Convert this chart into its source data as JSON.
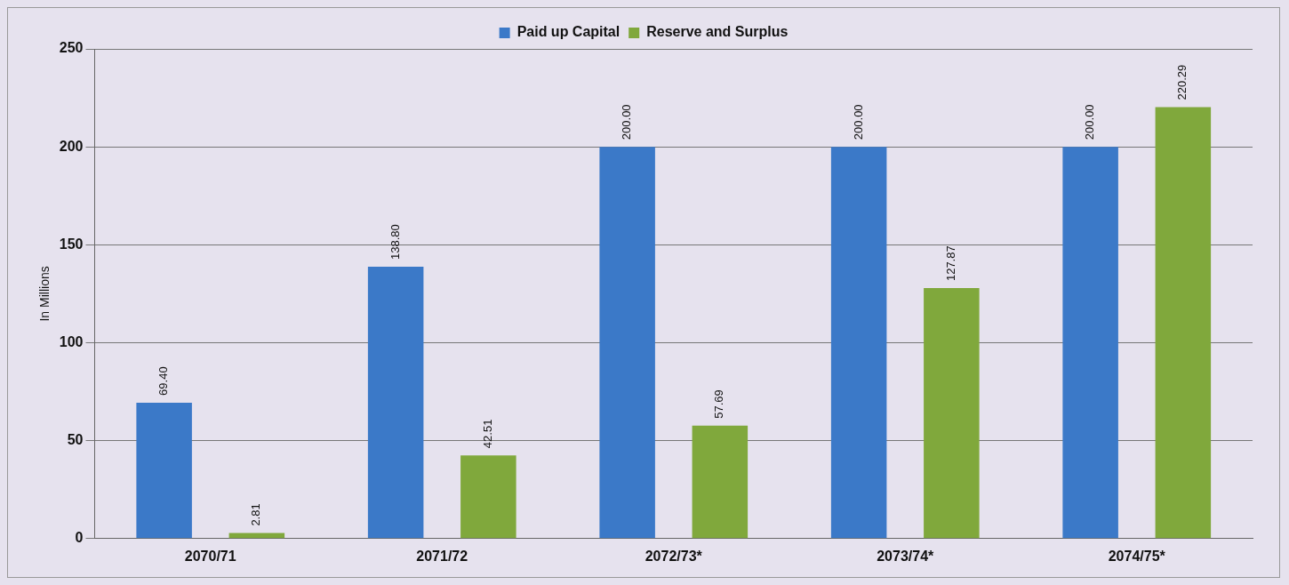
{
  "chart_data": {
    "type": "bar",
    "ylabel": "In Millions",
    "categories": [
      "2070/71",
      "2071/72",
      "2072/73*",
      "2073/74*",
      "2074/75*"
    ],
    "series": [
      {
        "name": "Paid up Capital",
        "color": "#3b79c8",
        "values": [
          69.4,
          138.8,
          200,
          200,
          200
        ],
        "value_labels": [
          "69.40",
          "138.80",
          "200.00",
          "200.00",
          "200.00"
        ]
      },
      {
        "name": "Reserve and Surplus",
        "color": "#80a83c",
        "values": [
          2.81,
          42.51,
          57.69,
          127.87,
          220.29
        ],
        "value_labels": [
          "2.81",
          "42.51",
          "57.69",
          "127.87",
          "220.29"
        ]
      }
    ],
    "ylim": [
      0,
      250
    ],
    "yticks": [
      0,
      50,
      100,
      150,
      200,
      250
    ],
    "grid": "y",
    "legend": "top"
  }
}
